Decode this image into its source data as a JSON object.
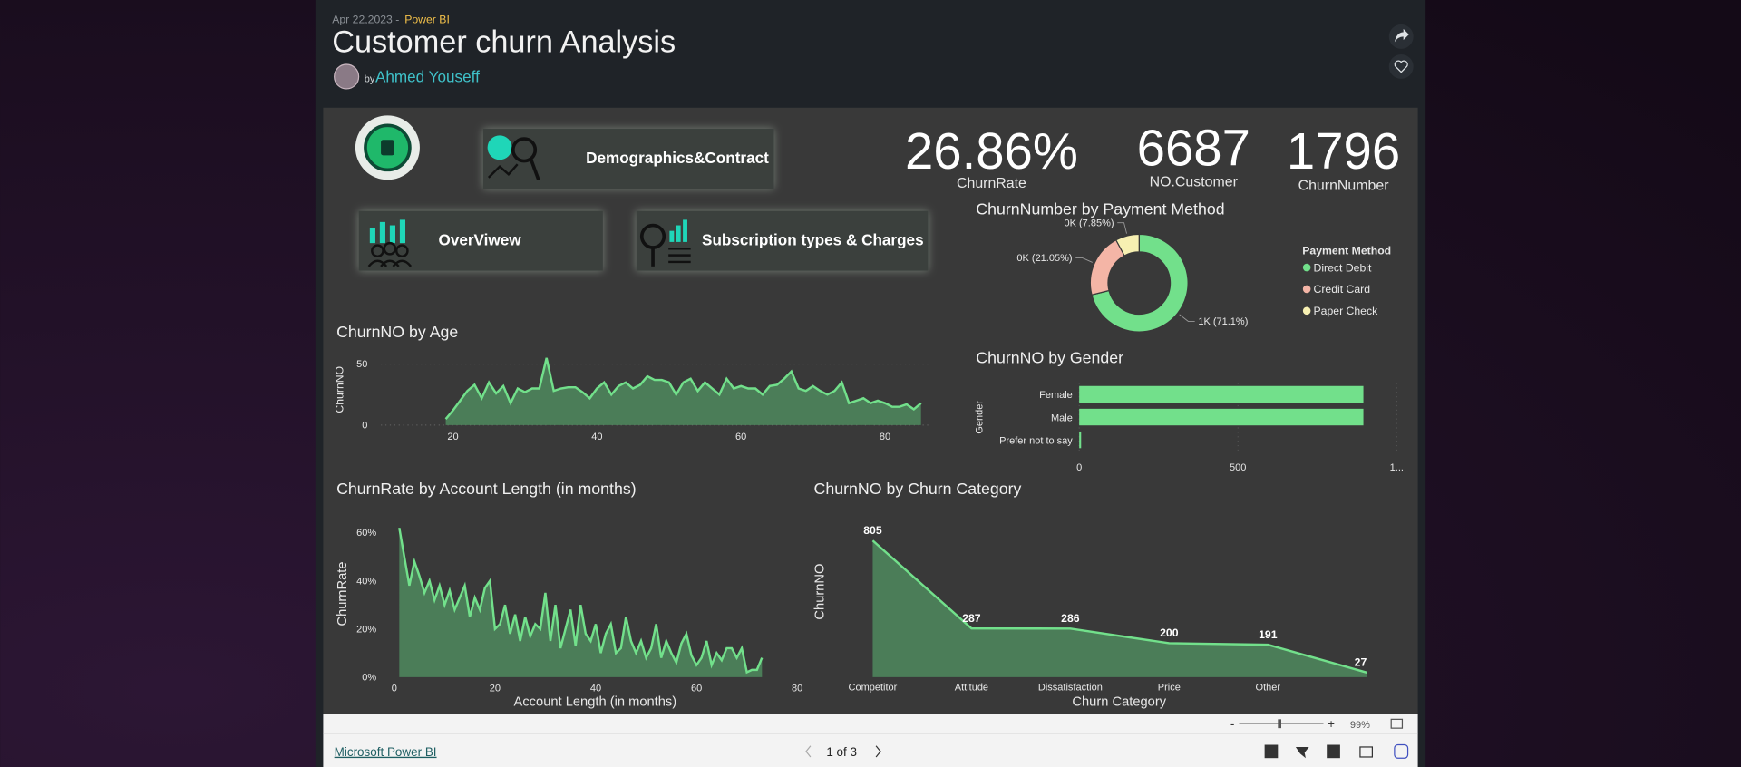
{
  "header": {
    "date": "Apr 22,2023 -",
    "source": "Power BI",
    "title": "Customer churn Analysis",
    "by": "by",
    "author": "Ahmed Youseff"
  },
  "buttons": [
    "Demographics&Contract",
    "OverViwew",
    "Subscription types & Charges"
  ],
  "kpis": [
    {
      "value": "26.86%",
      "label": "ChurnRate"
    },
    {
      "value": "6687",
      "label": "NO.Customer"
    },
    {
      "value": "1796",
      "label": "ChurnNumber"
    }
  ],
  "chart_data": [
    {
      "type": "pie",
      "title": "ChurnNumber by Payment Method",
      "legend_title": "Payment Method",
      "categories": [
        "Direct Debit",
        "Credit Card",
        "Paper Check"
      ],
      "values": [
        71.1,
        21.05,
        7.85
      ],
      "value_labels": [
        "1K (71.1%)",
        "0K (21.05%)",
        "0K (7.85%)"
      ],
      "colors": [
        "#72e08b",
        "#f4b5a6",
        "#f7f0b2"
      ],
      "donut": true
    },
    {
      "type": "area",
      "title": "ChurnNO by Age",
      "ylabel": "ChurnNO",
      "color": "#72e08b",
      "grid": true,
      "x": [
        19,
        20,
        21,
        22,
        23,
        24,
        25,
        26,
        27,
        28,
        29,
        30,
        31,
        32,
        33,
        34,
        35,
        36,
        37,
        38,
        39,
        40,
        41,
        42,
        43,
        44,
        45,
        46,
        47,
        48,
        49,
        50,
        51,
        52,
        53,
        54,
        55,
        56,
        57,
        58,
        59,
        60,
        61,
        62,
        63,
        64,
        65,
        66,
        67,
        68,
        69,
        70,
        71,
        72,
        73,
        74,
        75,
        76,
        77,
        78,
        79,
        80,
        81,
        82,
        83,
        84,
        85
      ],
      "values": [
        5,
        12,
        20,
        28,
        33,
        22,
        35,
        26,
        32,
        18,
        30,
        27,
        30,
        30,
        55,
        28,
        30,
        31,
        31,
        27,
        22,
        30,
        35,
        25,
        32,
        35,
        30,
        33,
        40,
        37,
        37,
        35,
        25,
        35,
        38,
        28,
        35,
        30,
        25,
        38,
        30,
        32,
        30,
        30,
        25,
        32,
        33,
        38,
        44,
        30,
        28,
        32,
        28,
        25,
        28,
        35,
        18,
        20,
        22,
        18,
        20,
        18,
        15,
        15,
        17,
        13,
        18
      ],
      "xlim": [
        10,
        86
      ],
      "ylim": [
        0,
        60
      ],
      "xticks": [
        20,
        40,
        60,
        80
      ],
      "yticks": [
        0,
        50
      ]
    },
    {
      "type": "bar",
      "orientation": "horizontal",
      "title": "ChurnNO by Gender",
      "ylabel": "Gender",
      "color": "#72e08b",
      "grid": true,
      "categories": [
        "Female",
        "Male",
        "Prefer not to say"
      ],
      "values": [
        895,
        895,
        6
      ],
      "xlim": [
        0,
        1000
      ],
      "xticks": [
        0,
        500,
        {
          "value": 1000,
          "label": "1..."
        }
      ]
    },
    {
      "type": "area",
      "title": "ChurnRate by Account Length (in months)",
      "ylabel": "ChurnRate",
      "xlabel": "Account Length (in months)",
      "color": "#72e08b",
      "grid": false,
      "x": [
        1,
        2,
        3,
        4,
        5,
        6,
        7,
        8,
        9,
        10,
        11,
        12,
        13,
        14,
        15,
        16,
        17,
        18,
        19,
        20,
        21,
        22,
        23,
        24,
        25,
        26,
        27,
        28,
        29,
        30,
        31,
        32,
        33,
        34,
        35,
        36,
        37,
        38,
        39,
        40,
        41,
        42,
        43,
        44,
        45,
        46,
        47,
        48,
        49,
        50,
        51,
        52,
        53,
        54,
        55,
        56,
        57,
        58,
        59,
        60,
        61,
        62,
        63,
        64,
        65,
        66,
        67,
        68,
        69,
        70,
        71,
        72,
        73
      ],
      "values": [
        62,
        50,
        38,
        48,
        42,
        35,
        40,
        32,
        38,
        30,
        36,
        28,
        33,
        38,
        25,
        33,
        28,
        37,
        40,
        20,
        22,
        30,
        18,
        26,
        15,
        25,
        17,
        22,
        20,
        35,
        15,
        30,
        12,
        20,
        28,
        13,
        30,
        18,
        15,
        22,
        10,
        18,
        22,
        10,
        12,
        25,
        15,
        10,
        15,
        8,
        12,
        22,
        8,
        15,
        10,
        6,
        14,
        18,
        9,
        5,
        8,
        15,
        5,
        10,
        7,
        12,
        12,
        8,
        12,
        2,
        3,
        3,
        8
      ],
      "xlim": [
        0,
        80
      ],
      "ylim": [
        0,
        65
      ],
      "xticks": [
        0,
        20,
        40,
        60,
        80
      ],
      "yticks": [
        {
          "value": 0,
          "label": "0%"
        },
        {
          "value": 20,
          "label": "20%"
        },
        {
          "value": 40,
          "label": "40%"
        },
        {
          "value": 60,
          "label": "60%"
        }
      ]
    },
    {
      "type": "area",
      "title": "ChurnNO by Churn Category",
      "ylabel": "ChurnNO",
      "xlabel": "Churn Category",
      "color": "#72e08b",
      "grid": false,
      "categories": [
        "Competitor",
        "Attitude",
        "Dissatisfaction",
        "Price",
        "Other",
        null
      ],
      "values": [
        805,
        287,
        286,
        200,
        191,
        27
      ],
      "ylim": [
        0,
        900
      ]
    }
  ],
  "footer": {
    "link": "Microsoft Power BI",
    "zoom_minus": "-",
    "zoom_plus": "+",
    "zoom": "99%",
    "page": "1 of 3"
  }
}
